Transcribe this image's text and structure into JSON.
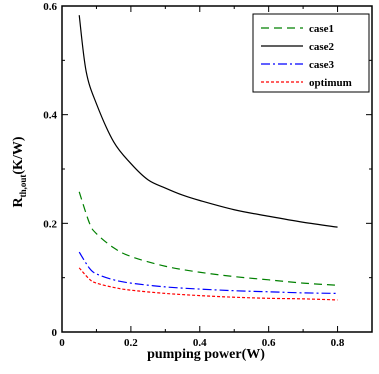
{
  "chart_data": {
    "type": "line",
    "title": "",
    "xlabel": "pumping power(W)",
    "ylabel": {
      "main": "R",
      "subscript": "th,out",
      "suffix": "(K/W)"
    },
    "xlim": [
      0,
      0.9
    ],
    "ylim": [
      0,
      0.6
    ],
    "x_ticks": [
      0,
      0.2,
      0.4,
      0.6,
      0.8
    ],
    "x_tick_labels": [
      "0",
      "0.2",
      "0.4",
      "0.6",
      "0.8"
    ],
    "y_ticks": [
      0,
      0.2,
      0.4,
      0.6
    ],
    "y_tick_labels": [
      "0",
      "0.2",
      "0.4",
      "0.6"
    ],
    "grid": false,
    "legend_position": "top-right",
    "series": [
      {
        "name": "case1",
        "color": "#008000",
        "dash": "long-dash",
        "x": [
          0.05,
          0.08,
          0.1,
          0.15,
          0.2,
          0.3,
          0.4,
          0.5,
          0.6,
          0.7,
          0.8
        ],
        "y": [
          0.258,
          0.2,
          0.181,
          0.155,
          0.139,
          0.121,
          0.11,
          0.102,
          0.096,
          0.09,
          0.086
        ]
      },
      {
        "name": "case2",
        "color": "#000000",
        "dash": "solid",
        "x": [
          0.05,
          0.07,
          0.1,
          0.15,
          0.2,
          0.25,
          0.3,
          0.35,
          0.4,
          0.5,
          0.6,
          0.7,
          0.8
        ],
        "y": [
          0.583,
          0.48,
          0.42,
          0.35,
          0.31,
          0.28,
          0.265,
          0.252,
          0.242,
          0.225,
          0.213,
          0.202,
          0.193
        ]
      },
      {
        "name": "case3",
        "color": "#0000ff",
        "dash": "dash-dot",
        "x": [
          0.05,
          0.08,
          0.1,
          0.15,
          0.2,
          0.3,
          0.4,
          0.5,
          0.6,
          0.7,
          0.8
        ],
        "y": [
          0.147,
          0.117,
          0.107,
          0.096,
          0.09,
          0.083,
          0.079,
          0.076,
          0.074,
          0.072,
          0.071
        ]
      },
      {
        "name": "optimum",
        "color": "#ff0000",
        "dash": "short-dash",
        "x": [
          0.05,
          0.08,
          0.1,
          0.15,
          0.2,
          0.3,
          0.4,
          0.5,
          0.6,
          0.7,
          0.8
        ],
        "y": [
          0.118,
          0.097,
          0.09,
          0.082,
          0.077,
          0.071,
          0.067,
          0.064,
          0.062,
          0.061,
          0.059
        ]
      }
    ]
  }
}
